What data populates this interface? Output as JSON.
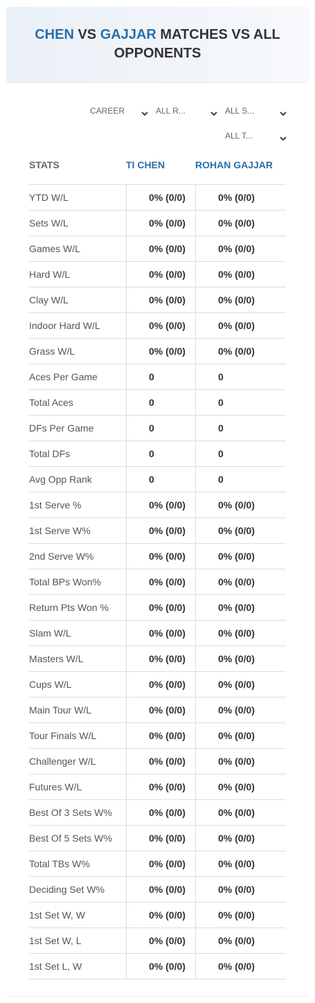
{
  "header": {
    "title": {
      "player1": "CHEN",
      "vs": "VS",
      "player2": "GAJJAR",
      "rest": "MATCHES VS ALL OPPONENTS"
    }
  },
  "filters": [
    "CAREER",
    "ALL R...",
    "ALL S...",
    "ALL T..."
  ],
  "table": {
    "columns": [
      "STATS",
      "TI CHEN",
      "ROHAN GAJJAR"
    ],
    "rows": [
      [
        "YTD W/L",
        "0% (0/0)",
        "0% (0/0)"
      ],
      [
        "Sets W/L",
        "0% (0/0)",
        "0% (0/0)"
      ],
      [
        "Games W/L",
        "0% (0/0)",
        "0% (0/0)"
      ],
      [
        "Hard W/L",
        "0% (0/0)",
        "0% (0/0)"
      ],
      [
        "Clay W/L",
        "0% (0/0)",
        "0% (0/0)"
      ],
      [
        "Indoor Hard W/L",
        "0% (0/0)",
        "0% (0/0)"
      ],
      [
        "Grass W/L",
        "0% (0/0)",
        "0% (0/0)"
      ],
      [
        "Aces Per Game",
        "0",
        "0"
      ],
      [
        "Total Aces",
        "0",
        "0"
      ],
      [
        "DFs Per Game",
        "0",
        "0"
      ],
      [
        "Total DFs",
        "0",
        "0"
      ],
      [
        "Avg Opp Rank",
        "0",
        "0"
      ],
      [
        "1st Serve %",
        "0% (0/0)",
        "0% (0/0)"
      ],
      [
        "1st Serve W%",
        "0% (0/0)",
        "0% (0/0)"
      ],
      [
        "2nd Serve W%",
        "0% (0/0)",
        "0% (0/0)"
      ],
      [
        "Total BPs Won%",
        "0% (0/0)",
        "0% (0/0)"
      ],
      [
        "Return Pts Won %",
        "0% (0/0)",
        "0% (0/0)"
      ],
      [
        "Slam W/L",
        "0% (0/0)",
        "0% (0/0)"
      ],
      [
        "Masters W/L",
        "0% (0/0)",
        "0% (0/0)"
      ],
      [
        "Cups W/L",
        "0% (0/0)",
        "0% (0/0)"
      ],
      [
        "Main Tour W/L",
        "0% (0/0)",
        "0% (0/0)"
      ],
      [
        "Tour Finals W/L",
        "0% (0/0)",
        "0% (0/0)"
      ],
      [
        "Challenger W/L",
        "0% (0/0)",
        "0% (0/0)"
      ],
      [
        "Futures W/L",
        "0% (0/0)",
        "0% (0/0)"
      ],
      [
        "Best Of 3 Sets W%",
        "0% (0/0)",
        "0% (0/0)"
      ],
      [
        "Best Of 5 Sets W%",
        "0% (0/0)",
        "0% (0/0)"
      ],
      [
        "Total TBs W%",
        "0% (0/0)",
        "0% (0/0)"
      ],
      [
        "Deciding Set W%",
        "0% (0/0)",
        "0% (0/0)"
      ],
      [
        "1st Set W, W",
        "0% (0/0)",
        "0% (0/0)"
      ],
      [
        "1st Set W, L",
        "0% (0/0)",
        "0% (0/0)"
      ],
      [
        "1st Set L, W",
        "0% (0/0)",
        "0% (0/0)"
      ]
    ]
  }
}
